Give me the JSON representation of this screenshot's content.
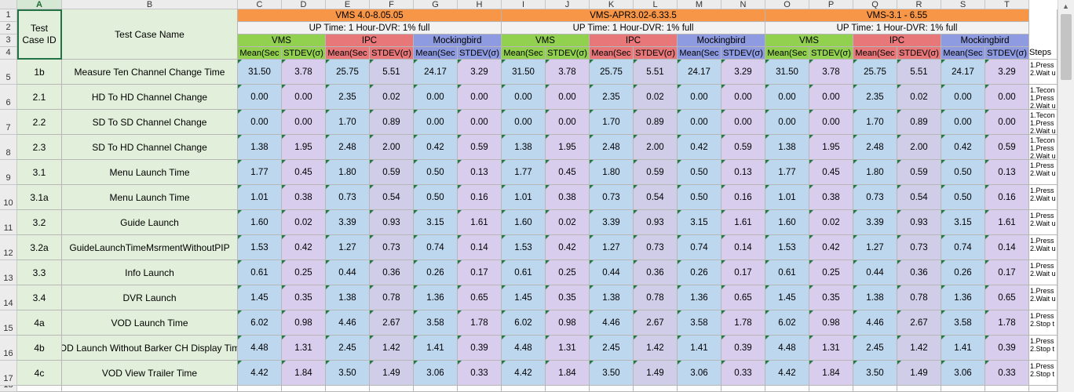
{
  "columns": [
    "A",
    "B",
    "C",
    "D",
    "E",
    "F",
    "G",
    "H",
    "I",
    "J",
    "K",
    "L",
    "M",
    "N",
    "O",
    "P",
    "Q",
    "R",
    "S",
    "T"
  ],
  "selected_column": "A",
  "row_numbers": [
    "1",
    "2",
    "3",
    "4",
    "5",
    "6",
    "7",
    "8",
    "9",
    "10",
    "11",
    "12",
    "13",
    "14",
    "15",
    "16",
    "17",
    "18"
  ],
  "header": {
    "test_case_id": "Test\nCase ID",
    "test_case_name": "Test Case Name",
    "steps": "Steps",
    "groups": [
      {
        "title": "VMS 4.0-8.05.05",
        "up_time": "UP Time: 1 Hour-DVR: 1% full"
      },
      {
        "title": "VMS-APR3.02-6.33.5",
        "up_time": "UP Time: 1 Hour-DVR: 1% full"
      },
      {
        "title": "VMS-3.1 - 6.55",
        "up_time": "UP Time: 1 Hour-DVR: 1% full"
      }
    ],
    "platforms": [
      "VMS",
      "IPC",
      "Mockingbird"
    ],
    "stats": [
      "Mean(Sec",
      "STDEV(σ)"
    ]
  },
  "colors": {
    "group_header": "#f79646",
    "uptime": "#f2f2f2",
    "vms": "#92d050",
    "ipc": "#e8777a",
    "mockingbird": "#8e9be0",
    "mean_blue": "#bdd7ee",
    "stdev_purple": "#d9cdee",
    "ipc_stdev": "#d0cde8",
    "id_name_fill": "#e2efda"
  },
  "rows": [
    {
      "row": "5",
      "id": "1b",
      "name": "Measure Ten Channel Change Time",
      "values": [
        "31.50",
        "3.78",
        "25.75",
        "5.51",
        "24.17",
        "3.29"
      ],
      "steps": [
        "1.Press",
        "2.Wait u"
      ]
    },
    {
      "row": "6",
      "id": "2.1",
      "name": "HD To HD Channel Change",
      "values": [
        "0.00",
        "0.00",
        "2.35",
        "0.02",
        "0.00",
        "0.00"
      ],
      "steps": [
        "1.Tecon",
        "1.Press",
        "2.Wait u"
      ]
    },
    {
      "row": "7",
      "id": "2.2",
      "name": "SD To SD Channel Change",
      "values": [
        "0.00",
        "0.00",
        "1.70",
        "0.89",
        "0.00",
        "0.00"
      ],
      "steps": [
        "1.Tecon",
        "1.Press",
        "2.Wait u"
      ]
    },
    {
      "row": "8",
      "id": "2.3",
      "name": "SD To HD Channel Change",
      "values": [
        "1.38",
        "1.95",
        "2.48",
        "2.00",
        "0.42",
        "0.59"
      ],
      "steps": [
        "1.Tecon",
        "1.Press",
        "2.Wait u"
      ]
    },
    {
      "row": "9",
      "id": "3.1",
      "name": "Menu Launch Time",
      "values": [
        "1.77",
        "0.45",
        "1.80",
        "0.59",
        "0.50",
        "0.13"
      ],
      "steps": [
        "1.Press",
        "2.Wait u"
      ]
    },
    {
      "row": "10",
      "id": "3.1a",
      "name": "Menu Launch Time",
      "values": [
        "1.01",
        "0.38",
        "0.73",
        "0.54",
        "0.50",
        "0.16"
      ],
      "steps": [
        "1.Press",
        "2.Wait u"
      ]
    },
    {
      "row": "11",
      "id": "3.2",
      "name": "Guide Launch",
      "values": [
        "1.60",
        "0.02",
        "3.39",
        "0.93",
        "3.15",
        "1.61"
      ],
      "steps": [
        "1.Press",
        "2.Wait u"
      ]
    },
    {
      "row": "12",
      "id": "3.2a",
      "name": "GuideLaunchTimeMsrmentWithoutPIP",
      "values": [
        "1.53",
        "0.42",
        "1.27",
        "0.73",
        "0.74",
        "0.14"
      ],
      "steps": [
        "1.Press",
        "2.Wait u"
      ]
    },
    {
      "row": "13",
      "id": "3.3",
      "name": "Info Launch",
      "values": [
        "0.61",
        "0.25",
        "0.44",
        "0.36",
        "0.26",
        "0.17"
      ],
      "steps": [
        "1.Press",
        "2.Wait u"
      ]
    },
    {
      "row": "14",
      "id": "3.4",
      "name": "DVR Launch",
      "values": [
        "1.45",
        "0.35",
        "1.38",
        "0.78",
        "1.36",
        "0.65"
      ],
      "steps": [
        "1.Press",
        "2.Wait u"
      ]
    },
    {
      "row": "15",
      "id": "4a",
      "name": "VOD Launch Time",
      "values": [
        "6.02",
        "0.98",
        "4.46",
        "2.67",
        "3.58",
        "1.78"
      ],
      "steps": [
        "1.Press",
        "2.Stop t"
      ]
    },
    {
      "row": "16",
      "id": "4b",
      "name": "OD Launch Without Barker CH Display Tim",
      "values": [
        "4.48",
        "1.31",
        "2.45",
        "1.42",
        "1.41",
        "0.39"
      ],
      "steps": [
        "1.Press",
        "2.Stop t"
      ]
    },
    {
      "row": "17",
      "id": "4c",
      "name": "VOD View Trailer Time",
      "values": [
        "4.42",
        "1.84",
        "3.50",
        "1.49",
        "3.06",
        "0.33"
      ],
      "steps": [
        "1.Press",
        "2.Stop t"
      ]
    }
  ]
}
